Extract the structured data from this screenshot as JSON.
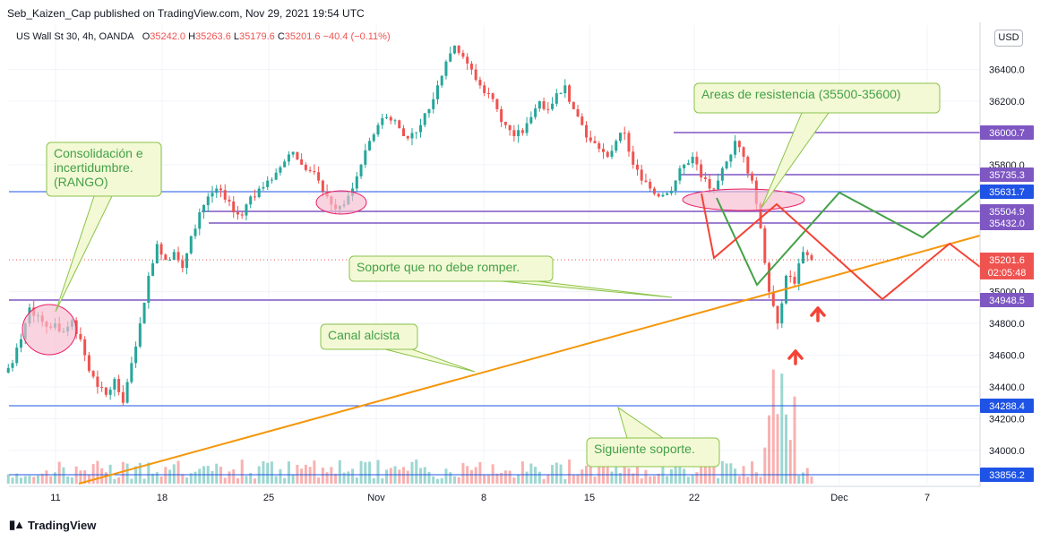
{
  "header": {
    "publisher_line": "Seb_Kaizen_Cap published on TradingView.com, Nov 29, 2021 19:54 UTC"
  },
  "legend": {
    "symbol": "US Wall St 30, 4h, OANDA",
    "open_label": "O",
    "open": "35242.0",
    "high_label": "H",
    "high": "35263.6",
    "low_label": "L",
    "low": "35179.6",
    "close_label": "C",
    "close": "35201.6",
    "change": "−40.4 (−0.11%)"
  },
  "currency_button": "USD",
  "footer": {
    "logo_text": "TradingView"
  },
  "colors": {
    "up": "#26a69a",
    "down": "#ef5350",
    "horizontal_line": "#1e53e5",
    "purple_line": "#7e57c2",
    "channel_line": "#f5960a",
    "green_path": "#43a047",
    "red_path": "#f44336",
    "callout_fill": "#f3f9d5",
    "callout_border": "#8bc34a",
    "ellipse_fill": "#f8bbd0",
    "ellipse_stroke": "#e91e63"
  },
  "chart_data": {
    "type": "candlestick",
    "symbol": "US Wall St 30",
    "interval": "4h",
    "price_axis": {
      "ticks": [
        "36400.0",
        "36200.0",
        "35800.0",
        "35000.0",
        "34800.0",
        "34600.0",
        "34400.0",
        "34200.0",
        "34000.0"
      ],
      "ylim": [
        33790,
        36680
      ]
    },
    "time_axis": {
      "ticks": [
        "11",
        "18",
        "25",
        "Nov",
        "8",
        "15",
        "22",
        "Dec",
        "7"
      ]
    },
    "price_labels": [
      {
        "value": "36000.7",
        "kind": "purple"
      },
      {
        "value": "35735.3",
        "kind": "purple"
      },
      {
        "value": "35631.7",
        "kind": "blue"
      },
      {
        "value": "35504.9",
        "kind": "purple"
      },
      {
        "value": "35432.0",
        "kind": "purple"
      },
      {
        "value": "34948.5",
        "kind": "purple"
      },
      {
        "value": "34288.4",
        "kind": "blue"
      },
      {
        "value": "33856.2",
        "kind": "blue"
      }
    ],
    "current_price": {
      "value": "35201.6",
      "countdown": "02:05:48"
    },
    "annotations": [
      {
        "id": "consolidation",
        "text": [
          "Consolidación e",
          "incertidumbre.",
          "(RANGO)"
        ]
      },
      {
        "id": "resistance",
        "text": [
          "Areas de resistencia (35500-35600)"
        ]
      },
      {
        "id": "support",
        "text": [
          "Soporte que no debe romper."
        ]
      },
      {
        "id": "channel",
        "text": [
          "Canal alcista"
        ]
      },
      {
        "id": "next_support",
        "text": [
          "Siguiente soporte."
        ]
      }
    ],
    "series_close_path": [
      34550,
      34700,
      34900,
      34850,
      34780,
      34800,
      34750,
      34820,
      34700,
      34500,
      34400,
      34350,
      34450,
      34300,
      34550,
      34800,
      35100,
      35300,
      35200,
      35250,
      35150,
      35350,
      35500,
      35600,
      35650,
      35580,
      35500,
      35480,
      35600,
      35650,
      35700,
      35750,
      35820,
      35880,
      35800,
      35760,
      35700,
      35600,
      35520,
      35550,
      35650,
      35800,
      35950,
      36050,
      36100,
      36080,
      35980,
      36000,
      36050,
      36150,
      36300,
      36450,
      36550,
      36480,
      36400,
      36300,
      36250,
      36150,
      36050,
      35980,
      36000,
      36100,
      36200,
      36150,
      36250,
      36300,
      36150,
      36050,
      35950,
      35900,
      35850,
      35950,
      36000,
      35800,
      35700,
      35650,
      35600,
      35620,
      35700,
      35800,
      35850,
      35720,
      35650,
      35700,
      35820,
      35950,
      35850,
      35700,
      35400,
      35000,
      34800,
      35100,
      35050,
      35250,
      35200
    ]
  }
}
